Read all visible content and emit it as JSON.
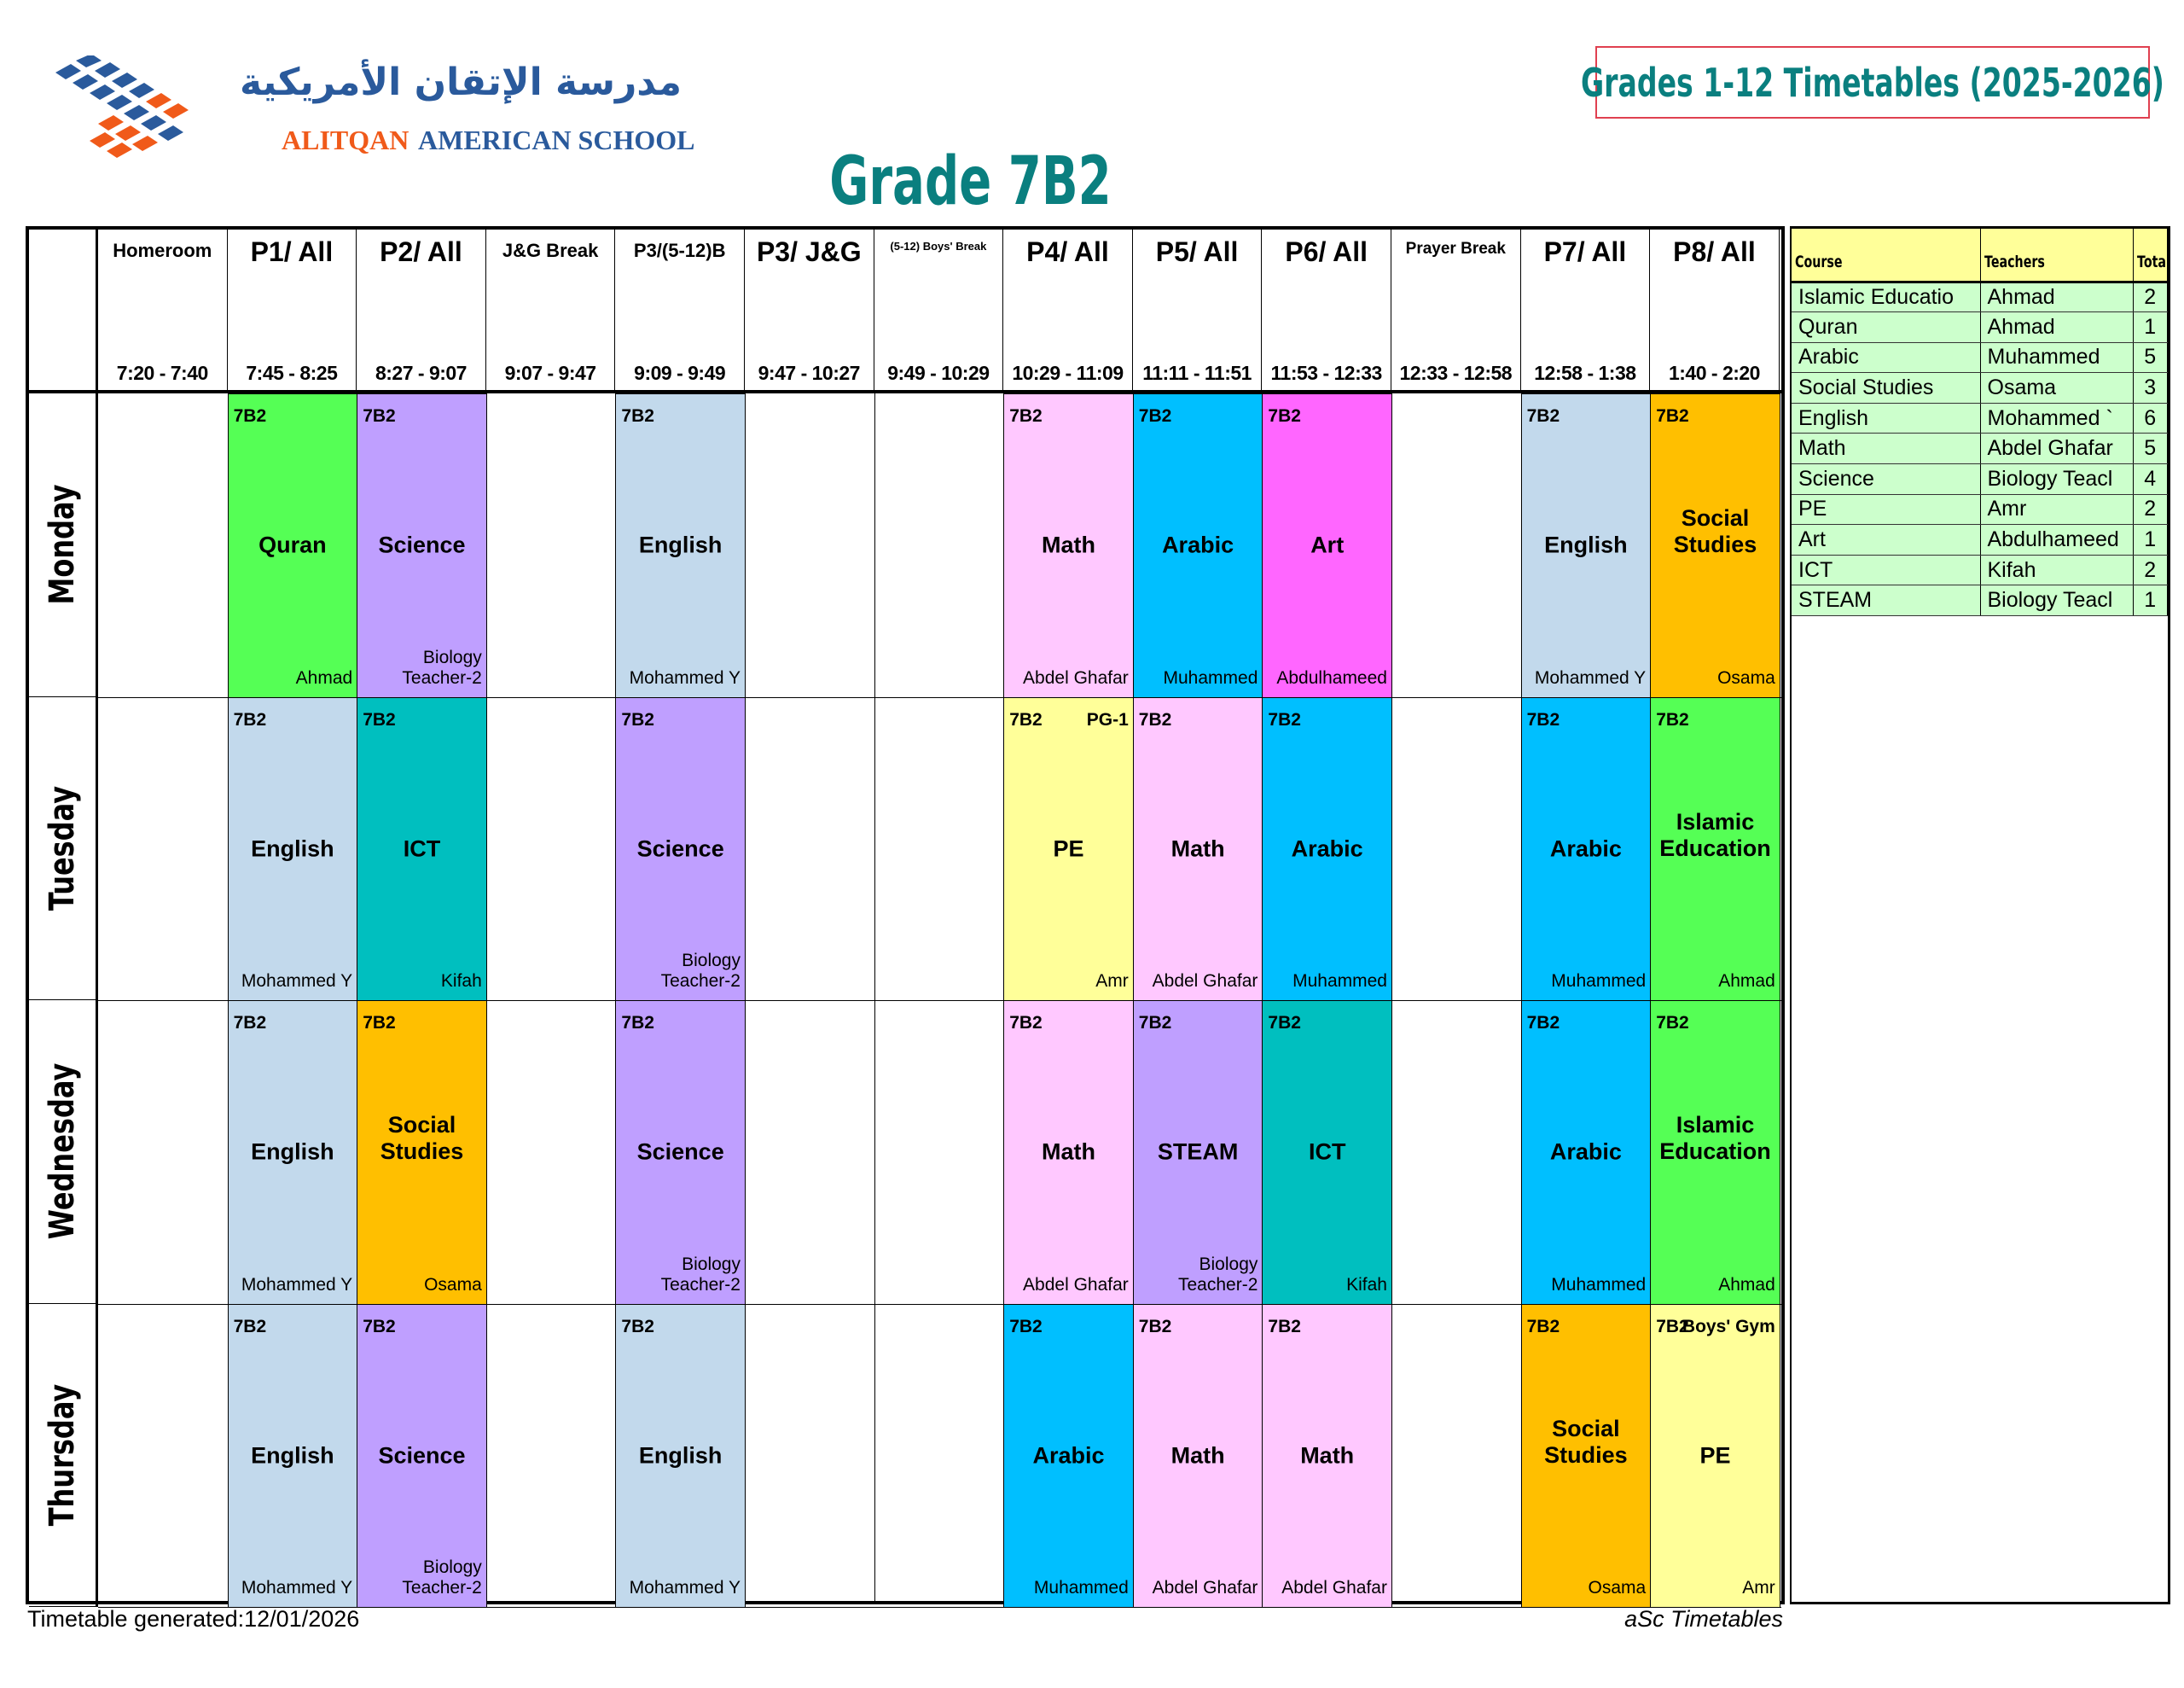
{
  "logo": {
    "arabic": "مدرسة الإتقان الأمريكية",
    "english_part1": "ALITQAN",
    "english_part2": "AMERICAN SCHOOL",
    "colors": {
      "blue": "#2a5a9c",
      "orange": "#f05a1a"
    }
  },
  "document_title": "Grades 1-12 Timetables (2025-2026)",
  "grade_title": "Grade 7B2",
  "periods": [
    {
      "label": "Homeroom",
      "time": "7:20 - 7:40",
      "size": "small"
    },
    {
      "label": "P1/ All",
      "time": "7:45 - 8:25",
      "size": "large"
    },
    {
      "label": "P2/ All",
      "time": "8:27 - 9:07",
      "size": "large"
    },
    {
      "label": "J&G Break",
      "time": "9:07 - 9:47",
      "size": "small"
    },
    {
      "label": "P3/(5-12)B",
      "time": "9:09 - 9:49",
      "size": "small"
    },
    {
      "label": "P3/ J&G",
      "time": "9:47 - 10:27",
      "size": "large"
    },
    {
      "label": "(5-12) Boys' Break",
      "time": "9:49 - 10:29",
      "size": "tiny"
    },
    {
      "label": "P4/ All",
      "time": "10:29 - 11:09",
      "size": "large"
    },
    {
      "label": "P5/ All",
      "time": "11:11 - 11:51",
      "size": "large"
    },
    {
      "label": "P6/ All",
      "time": "11:53 - 12:33",
      "size": "large"
    },
    {
      "label": "Prayer Break",
      "time": "12:33 - 12:58",
      "size": "smaller"
    },
    {
      "label": "P7/ All",
      "time": "12:58 - 1:38",
      "size": "large"
    },
    {
      "label": "P8/ All",
      "time": "1:40 - 2:20",
      "size": "large"
    }
  ],
  "subject_colors": {
    "Quran": "#55ff55",
    "Science": "#bf9fff",
    "English": "#c2d9ec",
    "Math": "#ffc8ff",
    "Arabic": "#00bfff",
    "Art": "#ff66ff",
    "Social Studies": "#ffbf00",
    "PE": "#ffff99",
    "ICT": "#00bfbf",
    "Islamic Education": "#55ff55",
    "STEAM": "#bf9fff"
  },
  "days": [
    {
      "name": "Monday",
      "lessons": [
        {
          "period": 1,
          "class": "7B2",
          "subject": "Quran",
          "teacher": "Ahmad"
        },
        {
          "period": 2,
          "class": "7B2",
          "subject": "Science",
          "teacher": "Biology Teacher-2"
        },
        {
          "period": 4,
          "class": "7B2",
          "subject": "English",
          "teacher": "Mohammed Y"
        },
        {
          "period": 7,
          "class": "7B2",
          "subject": "Math",
          "teacher": "Abdel Ghafar"
        },
        {
          "period": 8,
          "class": "7B2",
          "subject": "Arabic",
          "teacher": "Muhammed"
        },
        {
          "period": 9,
          "class": "7B2",
          "subject": "Art",
          "teacher": "Abdulhameed"
        },
        {
          "period": 11,
          "class": "7B2",
          "subject": "English",
          "teacher": "Mohammed Y"
        },
        {
          "period": 12,
          "class": "7B2",
          "subject": "Social Studies",
          "teacher": "Osama"
        }
      ]
    },
    {
      "name": "Tuesday",
      "lessons": [
        {
          "period": 1,
          "class": "7B2",
          "subject": "English",
          "teacher": "Mohammed Y"
        },
        {
          "period": 2,
          "class": "7B2",
          "subject": "ICT",
          "teacher": "Kifah"
        },
        {
          "period": 4,
          "class": "7B2",
          "subject": "Science",
          "teacher": "Biology Teacher-2"
        },
        {
          "period": 7,
          "class": "7B2",
          "subject": "PE",
          "teacher": "Amr",
          "room": "PG-1"
        },
        {
          "period": 8,
          "class": "7B2",
          "subject": "Math",
          "teacher": "Abdel Ghafar"
        },
        {
          "period": 9,
          "class": "7B2",
          "subject": "Arabic",
          "teacher": "Muhammed"
        },
        {
          "period": 11,
          "class": "7B2",
          "subject": "Arabic",
          "teacher": "Muhammed"
        },
        {
          "period": 12,
          "class": "7B2",
          "subject": "Islamic Education",
          "teacher": "Ahmad"
        }
      ]
    },
    {
      "name": "Wednesday",
      "lessons": [
        {
          "period": 1,
          "class": "7B2",
          "subject": "English",
          "teacher": "Mohammed Y"
        },
        {
          "period": 2,
          "class": "7B2",
          "subject": "Social Studies",
          "teacher": "Osama"
        },
        {
          "period": 4,
          "class": "7B2",
          "subject": "Science",
          "teacher": "Biology Teacher-2"
        },
        {
          "period": 7,
          "class": "7B2",
          "subject": "Math",
          "teacher": "Abdel Ghafar"
        },
        {
          "period": 8,
          "class": "7B2",
          "subject": "STEAM",
          "teacher": "Biology Teacher-2"
        },
        {
          "period": 9,
          "class": "7B2",
          "subject": "ICT",
          "teacher": "Kifah"
        },
        {
          "period": 11,
          "class": "7B2",
          "subject": "Arabic",
          "teacher": "Muhammed"
        },
        {
          "period": 12,
          "class": "7B2",
          "subject": "Islamic Education",
          "teacher": "Ahmad"
        }
      ]
    },
    {
      "name": "Thursday",
      "lessons": [
        {
          "period": 1,
          "class": "7B2",
          "subject": "English",
          "teacher": "Mohammed Y"
        },
        {
          "period": 2,
          "class": "7B2",
          "subject": "Science",
          "teacher": "Biology Teacher-2"
        },
        {
          "period": 4,
          "class": "7B2",
          "subject": "English",
          "teacher": "Mohammed Y"
        },
        {
          "period": 7,
          "class": "7B2",
          "subject": "Arabic",
          "teacher": "Muhammed"
        },
        {
          "period": 8,
          "class": "7B2",
          "subject": "Math",
          "teacher": "Abdel Ghafar"
        },
        {
          "period": 9,
          "class": "7B2",
          "subject": "Math",
          "teacher": "Abdel Ghafar"
        },
        {
          "period": 11,
          "class": "7B2",
          "subject": "Social Studies",
          "teacher": "Osama"
        },
        {
          "period": 12,
          "class": "7B2",
          "subject": "PE",
          "teacher": "Amr",
          "room": "Boys' Gym"
        }
      ]
    }
  ],
  "summary": {
    "headers": [
      "Course",
      "Teachers",
      "Tota"
    ],
    "rows": [
      [
        "Islamic Educatio",
        "Ahmad",
        "2"
      ],
      [
        "Quran",
        "Ahmad",
        "1"
      ],
      [
        "Arabic",
        "Muhammed",
        "5"
      ],
      [
        "Social Studies",
        "Osama",
        "3"
      ],
      [
        "English",
        "Mohammed `",
        "6"
      ],
      [
        "Math",
        "Abdel Ghafar",
        "5"
      ],
      [
        "Science",
        "Biology Teacl",
        "4"
      ],
      [
        "PE",
        "Amr",
        "2"
      ],
      [
        "Art",
        "Abdulhameed",
        "1"
      ],
      [
        "ICT",
        "Kifah",
        "2"
      ],
      [
        "STEAM",
        "Biology Teacl",
        "1"
      ]
    ]
  },
  "footer": {
    "generated": "Timetable generated:12/01/2026",
    "software": "aSc Timetables"
  }
}
